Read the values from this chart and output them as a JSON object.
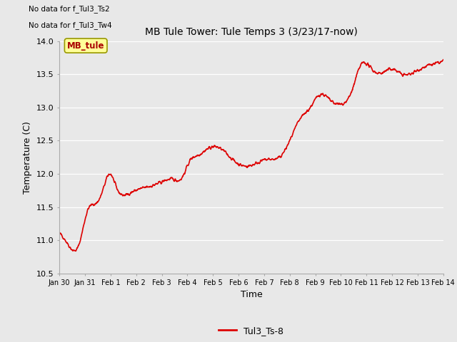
{
  "title": "MB Tule Tower: Tule Temps 3 (3/23/17-now)",
  "xlabel": "Time",
  "ylabel": "Temperature (C)",
  "ylim": [
    10.5,
    14.0
  ],
  "xlim_days": [
    0,
    15
  ],
  "line_color": "#dd0000",
  "line_width": 1.2,
  "legend_label": "Tul3_Ts-8",
  "legend_label_color": "#dd0000",
  "no_data_text1": "No data for f_Tul3_Ts2",
  "no_data_text2": "No data for f_Tul3_Tw4",
  "mb_tule_label": "MB_tule",
  "mb_tule_box_color": "#ffff99",
  "mb_tule_text_color": "#aa0000",
  "bg_color": "#e8e8e8",
  "plot_bg_color": "#e8e8e8",
  "tick_labels": [
    "Jan 30",
    "Jan 31",
    "Feb 1",
    "Feb 2",
    "Feb 3",
    "Feb 4",
    "Feb 5",
    "Feb 6",
    "Feb 7",
    "Feb 8",
    "Feb 9",
    "Feb 10",
    "Feb 11",
    "Feb 12",
    "Feb 13",
    "Feb 14"
  ],
  "tick_positions": [
    0,
    1,
    2,
    3,
    4,
    5,
    6,
    7,
    8,
    9,
    10,
    11,
    12,
    13,
    14,
    15
  ],
  "yticks": [
    10.5,
    11.0,
    11.5,
    12.0,
    12.5,
    13.0,
    13.5,
    14.0
  ],
  "control_x": [
    0,
    0.15,
    0.45,
    0.75,
    1.1,
    1.4,
    1.65,
    2.0,
    2.2,
    2.5,
    2.8,
    3.2,
    3.6,
    4.0,
    4.4,
    4.8,
    5.1,
    5.4,
    5.8,
    6.2,
    6.6,
    7.0,
    7.4,
    7.8,
    8.2,
    8.6,
    9.0,
    9.4,
    9.8,
    10.2,
    10.6,
    11.0,
    11.4,
    11.8,
    12.2,
    12.6,
    13.0,
    13.4,
    13.8,
    14.2,
    14.6,
    15.0
  ],
  "control_y": [
    11.1,
    11.05,
    10.88,
    10.92,
    11.45,
    11.55,
    11.7,
    12.0,
    11.82,
    11.68,
    11.72,
    11.78,
    11.82,
    11.88,
    11.92,
    11.95,
    12.2,
    12.28,
    12.38,
    12.4,
    12.28,
    12.15,
    12.12,
    12.18,
    12.22,
    12.25,
    12.5,
    12.82,
    13.0,
    13.2,
    13.1,
    13.05,
    13.22,
    13.65,
    13.58,
    13.52,
    13.58,
    13.5,
    13.52,
    13.6,
    13.65,
    13.7
  ]
}
